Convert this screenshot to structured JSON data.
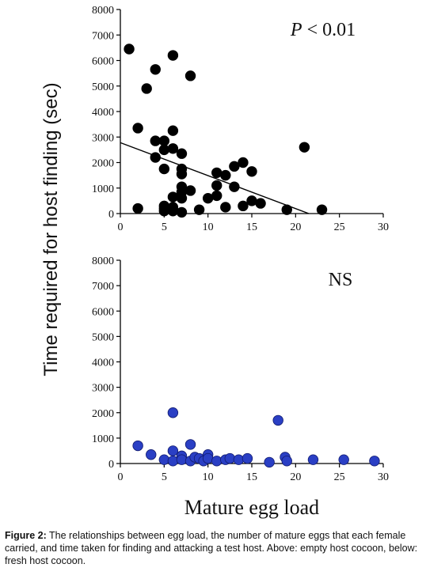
{
  "chart_data": [
    {
      "type": "scatter",
      "xlabel": "Mature egg load",
      "ylabel": "Time required for host finding (sec)",
      "xlim": [
        0,
        30
      ],
      "ylim": [
        0,
        8000
      ],
      "xticks": [
        0,
        5,
        10,
        15,
        20,
        25,
        30
      ],
      "yticks": [
        0,
        1000,
        2000,
        3000,
        4000,
        5000,
        6000,
        7000,
        8000
      ],
      "annotation": "P < 0.01",
      "annotation_italic": "P",
      "annotation_rest": " < 0.01",
      "marker_color": "#000000",
      "trendline": {
        "x": [
          0,
          21.5
        ],
        "y": [
          2780,
          0
        ]
      },
      "grid": false,
      "x": [
        1,
        2,
        2,
        3,
        4,
        4,
        4,
        5,
        5,
        5,
        5,
        5,
        5,
        6,
        6,
        6,
        6,
        6,
        6,
        7,
        7,
        7,
        7,
        7,
        7,
        7,
        8,
        8,
        9,
        10,
        11,
        11,
        11,
        12,
        12,
        13,
        13,
        14,
        14,
        15,
        15,
        16,
        19,
        21,
        23
      ],
      "y": [
        6450,
        3350,
        200,
        4900,
        5650,
        2850,
        2200,
        2850,
        2500,
        1750,
        300,
        200,
        100,
        6200,
        3250,
        2550,
        650,
        250,
        100,
        2350,
        1750,
        1550,
        1050,
        850,
        600,
        50,
        5400,
        900,
        150,
        600,
        1600,
        1100,
        700,
        1500,
        250,
        1850,
        1050,
        2000,
        300,
        1650,
        500,
        400,
        150,
        2600,
        150
      ]
    },
    {
      "type": "scatter",
      "xlabel": "Mature egg load",
      "ylabel": "Time required for host finding (sec)",
      "xlim": [
        0,
        30
      ],
      "ylim": [
        0,
        8000
      ],
      "xticks": [
        0,
        5,
        10,
        15,
        20,
        25,
        30
      ],
      "yticks": [
        0,
        1000,
        2000,
        3000,
        4000,
        5000,
        6000,
        7000,
        8000
      ],
      "annotation": "NS",
      "marker_color": "#2a3fc4",
      "grid": false,
      "x": [
        2,
        3.5,
        5,
        6,
        6,
        6,
        7,
        7,
        8,
        8,
        8.5,
        9,
        9.5,
        10,
        10,
        11,
        12,
        12.5,
        13.5,
        14.5,
        17,
        18,
        18.8,
        19,
        22,
        25.5,
        29
      ],
      "y": [
        700,
        350,
        150,
        2000,
        500,
        100,
        300,
        150,
        750,
        100,
        250,
        200,
        100,
        350,
        200,
        100,
        150,
        200,
        150,
        200,
        50,
        1700,
        250,
        100,
        150,
        150,
        100
      ]
    }
  ],
  "caption": {
    "label": "Figure 2:",
    "text": " The relationships between egg load, the number of mature eggs that each female carried, and time taken for finding and attacking a test host. Above: empty host cocoon, below: fresh host cocoon."
  }
}
